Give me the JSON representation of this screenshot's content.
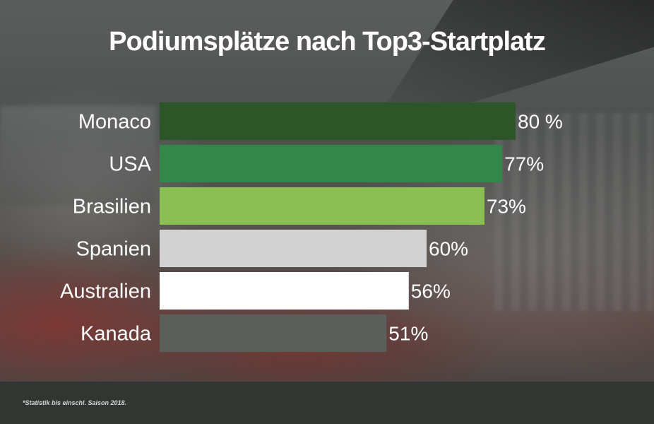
{
  "chart_data": {
    "type": "bar",
    "orientation": "horizontal",
    "title": "Podiumsplätze nach Top3-Startplatz",
    "categories": [
      "Monaco",
      "USA",
      "Brasilien",
      "Spanien",
      "Australien",
      "Kanada"
    ],
    "values": [
      80,
      77,
      73,
      60,
      56,
      51
    ],
    "value_labels": [
      "80 %",
      "77%",
      "73%",
      "60%",
      "56%",
      "51%"
    ],
    "bar_colors": [
      "#2d5527",
      "#328749",
      "#8bbf53",
      "#d2d2d2",
      "#ffffff",
      "#5b5e5b"
    ],
    "xlim": [
      0,
      100
    ],
    "grid": false,
    "legend": "none"
  },
  "footnote": "*Statistik bis einschl. Saison 2018."
}
